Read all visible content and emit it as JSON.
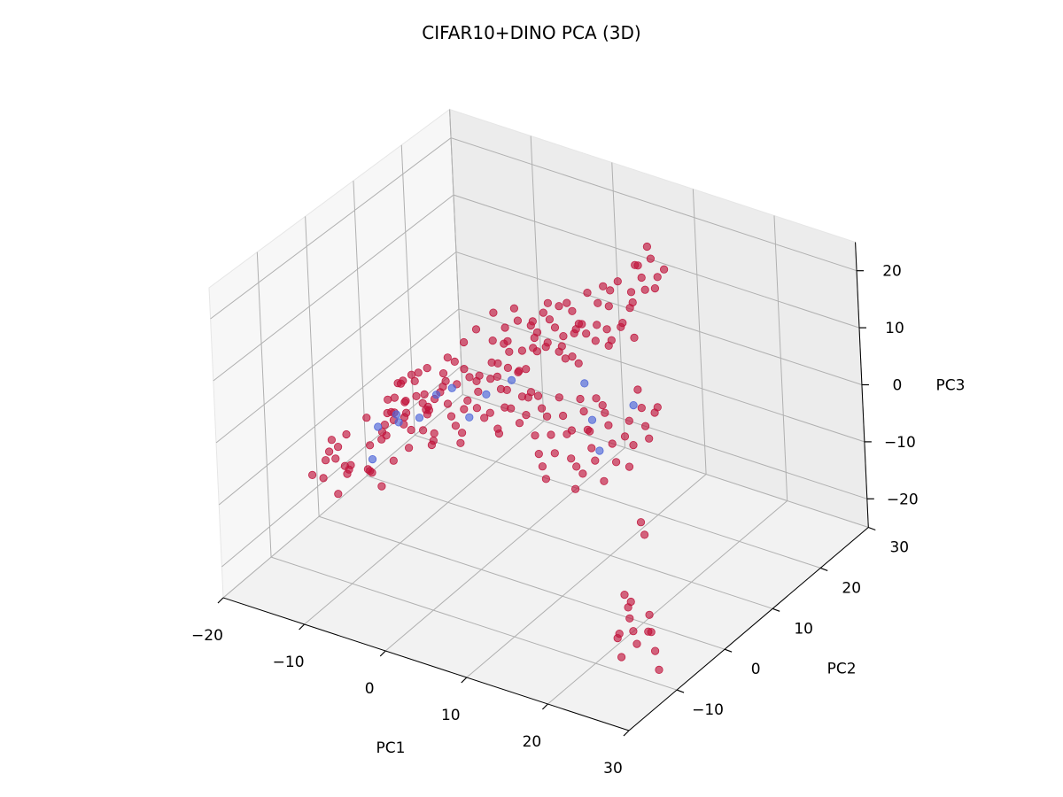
{
  "chart_data": {
    "type": "scatter",
    "title": "CIFAR10+DINO PCA (3D)",
    "xlabel": "PC1",
    "ylabel": "PC2",
    "zlabel": "PC3",
    "xlim": [
      -20,
      30
    ],
    "ylim": [
      -20,
      30
    ],
    "zlim": [
      -25,
      25
    ],
    "xticks": [
      -20,
      -10,
      0,
      10,
      20,
      30
    ],
    "yticks": [
      -10,
      0,
      10,
      20,
      30
    ],
    "zticks": [
      -20,
      -10,
      0,
      10,
      20
    ],
    "xtick_labels": [
      "−20",
      "−10",
      "0",
      "10",
      "20",
      "30"
    ],
    "ytick_labels": [
      "−10",
      "0",
      "10",
      "20",
      "30"
    ],
    "ztick_labels": [
      "−20",
      "−10",
      "0",
      "10",
      "20"
    ],
    "grid": true,
    "colors": {
      "majority": "#c0143c",
      "minority": "#4c64d8"
    },
    "series": [
      {
        "class": "majority",
        "points": [
          [
            -13,
            -8,
            -4
          ],
          [
            -12,
            -9,
            -6
          ],
          [
            -11,
            -8,
            -8
          ],
          [
            -12,
            -6,
            -9
          ],
          [
            -10,
            -10,
            -7
          ],
          [
            -13,
            -5,
            -5
          ],
          [
            -9,
            -7,
            -8
          ],
          [
            -11,
            -10,
            -3
          ],
          [
            -8,
            -9,
            -6
          ],
          [
            -10,
            -5,
            -10
          ],
          [
            -14,
            -7,
            -7
          ],
          [
            -7,
            -8,
            -9
          ],
          [
            -12,
            -11,
            -5
          ],
          [
            -9,
            -12,
            -4
          ],
          [
            -13,
            -10,
            -9
          ],
          [
            -6,
            -7,
            -5
          ],
          [
            -11,
            -4,
            -2
          ],
          [
            -8,
            -5,
            -3
          ],
          [
            -15,
            -9,
            -10
          ],
          [
            -10,
            -12,
            -9
          ],
          [
            -7,
            -6,
            4
          ],
          [
            -6,
            -4,
            3
          ],
          [
            -5,
            -6,
            2
          ],
          [
            -4,
            -3,
            1
          ],
          [
            -6,
            -2,
            5
          ],
          [
            -3,
            -5,
            6
          ],
          [
            -5,
            -1,
            0
          ],
          [
            -4,
            -4,
            -1
          ],
          [
            -2,
            -2,
            3
          ],
          [
            -7,
            -3,
            -2
          ],
          [
            -3,
            -1,
            7
          ],
          [
            -1,
            -3,
            2
          ],
          [
            -2,
            0,
            5
          ],
          [
            -5,
            -6,
            8
          ],
          [
            -4,
            1,
            4
          ],
          [
            -6,
            0,
            -1
          ],
          [
            0,
            -2,
            3
          ],
          [
            -3,
            -4,
            -3
          ],
          [
            -1,
            1,
            6
          ],
          [
            -2,
            -5,
            0
          ],
          [
            -5,
            2,
            2
          ],
          [
            -4,
            -2,
            -4
          ],
          [
            -3,
            0,
            9
          ],
          [
            -6,
            -4,
            1
          ],
          [
            -1,
            -1,
            -2
          ],
          [
            0,
            1,
            4
          ],
          [
            -2,
            2,
            1
          ],
          [
            -4,
            3,
            6
          ],
          [
            -3,
            -3,
            4
          ],
          [
            -5,
            -1,
            7
          ],
          [
            1,
            -1,
            3
          ],
          [
            0,
            2,
            -1
          ],
          [
            -1,
            3,
            5
          ],
          [
            2,
            0,
            2
          ],
          [
            -2,
            4,
            3
          ],
          [
            1,
            2,
            6
          ],
          [
            0,
            -3,
            -2
          ],
          [
            -3,
            1,
            -3
          ],
          [
            2,
            3,
            1
          ],
          [
            -1,
            0,
            8
          ],
          [
            -6,
            -7,
            3
          ],
          [
            -7,
            -5,
            0
          ],
          [
            -8,
            -3,
            2
          ],
          [
            -5,
            -8,
            4
          ],
          [
            -4,
            -7,
            -2
          ],
          [
            -6,
            -9,
            1
          ],
          [
            -3,
            -8,
            2
          ],
          [
            -7,
            -10,
            -1
          ],
          [
            -2,
            -6,
            5
          ],
          [
            -8,
            -6,
            -3
          ],
          [
            3,
            2,
            5
          ],
          [
            4,
            1,
            3
          ],
          [
            2,
            4,
            7
          ],
          [
            5,
            3,
            4
          ],
          [
            3,
            5,
            2
          ],
          [
            4,
            3,
            8
          ],
          [
            1,
            4,
            3
          ],
          [
            5,
            1,
            1
          ],
          [
            2,
            6,
            5
          ],
          [
            6,
            2,
            6
          ],
          [
            3,
            0,
            -1
          ],
          [
            4,
            4,
            0
          ],
          [
            1,
            6,
            8
          ],
          [
            5,
            5,
            3
          ],
          [
            2,
            2,
            9
          ],
          [
            6,
            4,
            2
          ],
          [
            3,
            6,
            6
          ],
          [
            0,
            5,
            4
          ],
          [
            4,
            6,
            10
          ],
          [
            1,
            3,
            -3
          ],
          [
            7,
            10,
            12
          ],
          [
            8,
            9,
            14
          ],
          [
            9,
            11,
            13
          ],
          [
            10,
            12,
            16
          ],
          [
            8,
            13,
            15
          ],
          [
            11,
            10,
            11
          ],
          [
            9,
            14,
            17
          ],
          [
            10,
            9,
            12
          ],
          [
            12,
            11,
            14
          ],
          [
            8,
            11,
            18
          ],
          [
            11,
            13,
            13
          ],
          [
            9,
            8,
            15
          ],
          [
            10,
            14,
            19
          ],
          [
            12,
            13,
            16
          ],
          [
            7,
            12,
            10
          ],
          [
            13,
            12,
            12
          ],
          [
            11,
            15,
            17
          ],
          [
            9,
            13,
            11
          ],
          [
            12,
            9,
            13
          ],
          [
            10,
            11,
            20
          ],
          [
            6,
            8,
            9
          ],
          [
            7,
            7,
            11
          ],
          [
            8,
            6,
            10
          ],
          [
            5,
            9,
            12
          ],
          [
            6,
            11,
            14
          ],
          [
            7,
            9,
            8
          ],
          [
            8,
            8,
            13
          ],
          [
            9,
            7,
            9
          ],
          [
            6,
            10,
            16
          ],
          [
            5,
            7,
            10
          ],
          [
            13,
            14,
            21
          ],
          [
            12,
            15,
            22
          ],
          [
            14,
            13,
            20
          ],
          [
            11,
            16,
            21
          ],
          [
            13,
            16,
            23
          ],
          [
            14,
            15,
            19
          ],
          [
            12,
            17,
            24
          ],
          [
            15,
            14,
            22
          ],
          [
            13,
            12,
            18
          ],
          [
            14,
            17,
            21
          ],
          [
            10,
            6,
            2
          ],
          [
            11,
            5,
            0
          ],
          [
            12,
            4,
            -2
          ],
          [
            9,
            7,
            3
          ],
          [
            13,
            6,
            1
          ],
          [
            10,
            3,
            -4
          ],
          [
            14,
            5,
            -1
          ],
          [
            11,
            7,
            4
          ],
          [
            12,
            2,
            -5
          ],
          [
            15,
            6,
            0
          ],
          [
            10,
            4,
            -6
          ],
          [
            13,
            3,
            -3
          ],
          [
            9,
            5,
            -1
          ],
          [
            12,
            7,
            2
          ],
          [
            14,
            3,
            -6
          ],
          [
            11,
            2,
            -8
          ],
          [
            15,
            4,
            -3
          ],
          [
            10,
            7,
            -2
          ],
          [
            13,
            5,
            5
          ],
          [
            16,
            5,
            -4
          ],
          [
            19,
            2,
            -10
          ],
          [
            20,
            1,
            -11
          ],
          [
            24,
            -10,
            -12
          ],
          [
            25,
            -11,
            -13
          ],
          [
            26,
            -12,
            -11
          ],
          [
            27,
            -10,
            -14
          ],
          [
            28,
            -12,
            -15
          ],
          [
            25,
            -13,
            -16
          ],
          [
            27,
            -14,
            -12
          ],
          [
            29,
            -13,
            -14
          ],
          [
            26,
            -15,
            -15
          ],
          [
            28,
            -15,
            -13
          ],
          [
            30,
            -14,
            -16
          ],
          [
            27,
            -16,
            -17
          ],
          [
            29,
            -16,
            -14
          ],
          [
            31,
            -15,
            -18
          ],
          [
            -9,
            -3,
            -1
          ],
          [
            -8,
            -1,
            0
          ],
          [
            -10,
            -2,
            -4
          ],
          [
            -9,
            0,
            2
          ],
          [
            -7,
            1,
            -1
          ],
          [
            -8,
            2,
            3
          ],
          [
            -6,
            3,
            0
          ],
          [
            -10,
            1,
            1
          ],
          [
            -7,
            -1,
            5
          ],
          [
            -9,
            3,
            -2
          ],
          [
            3,
            8,
            10
          ],
          [
            4,
            7,
            12
          ],
          [
            2,
            9,
            11
          ],
          [
            5,
            8,
            14
          ],
          [
            3,
            10,
            13
          ],
          [
            4,
            9,
            9
          ],
          [
            1,
            8,
            12
          ],
          [
            5,
            10,
            15
          ],
          [
            2,
            7,
            8
          ],
          [
            6,
            9,
            11
          ],
          [
            -1,
            6,
            9
          ],
          [
            0,
            7,
            11
          ],
          [
            1,
            5,
            10
          ],
          [
            -2,
            8,
            12
          ],
          [
            0,
            9,
            13
          ],
          [
            2,
            10,
            6
          ],
          [
            -1,
            9,
            7
          ],
          [
            1,
            11,
            10
          ],
          [
            3,
            11,
            14
          ],
          [
            0,
            4,
            7
          ],
          [
            16,
            8,
            4
          ],
          [
            17,
            7,
            2
          ],
          [
            15,
            9,
            6
          ],
          [
            18,
            6,
            1
          ],
          [
            17,
            9,
            3
          ],
          [
            16,
            6,
            -1
          ],
          [
            18,
            8,
            5
          ],
          [
            15,
            7,
            2
          ],
          [
            7,
            4,
            -2
          ],
          [
            8,
            3,
            -4
          ],
          [
            6,
            5,
            0
          ],
          [
            7,
            2,
            -6
          ],
          [
            5,
            4,
            -3
          ],
          [
            8,
            5,
            1
          ],
          [
            6,
            3,
            -5
          ],
          [
            9,
            4,
            -1
          ],
          [
            7,
            6,
            3
          ],
          [
            8,
            1,
            -7
          ],
          [
            -4,
            5,
            8
          ],
          [
            -3,
            6,
            10
          ]
        ]
      },
      {
        "class": "minority",
        "points": [
          [
            -9,
            -5,
            -2
          ],
          [
            -8,
            -8,
            -5
          ],
          [
            -5,
            -3,
            0
          ],
          [
            -4,
            -1,
            3
          ],
          [
            -2,
            -1,
            5
          ],
          [
            1,
            1,
            4
          ],
          [
            3,
            3,
            6
          ],
          [
            -6,
            -6,
            2
          ],
          [
            11,
            6,
            1
          ],
          [
            13,
            4,
            -2
          ],
          [
            9,
            8,
            5
          ],
          [
            15,
            8,
            4
          ],
          [
            -7,
            -4,
            -1
          ],
          [
            0,
            -1,
            1
          ]
        ]
      }
    ]
  }
}
